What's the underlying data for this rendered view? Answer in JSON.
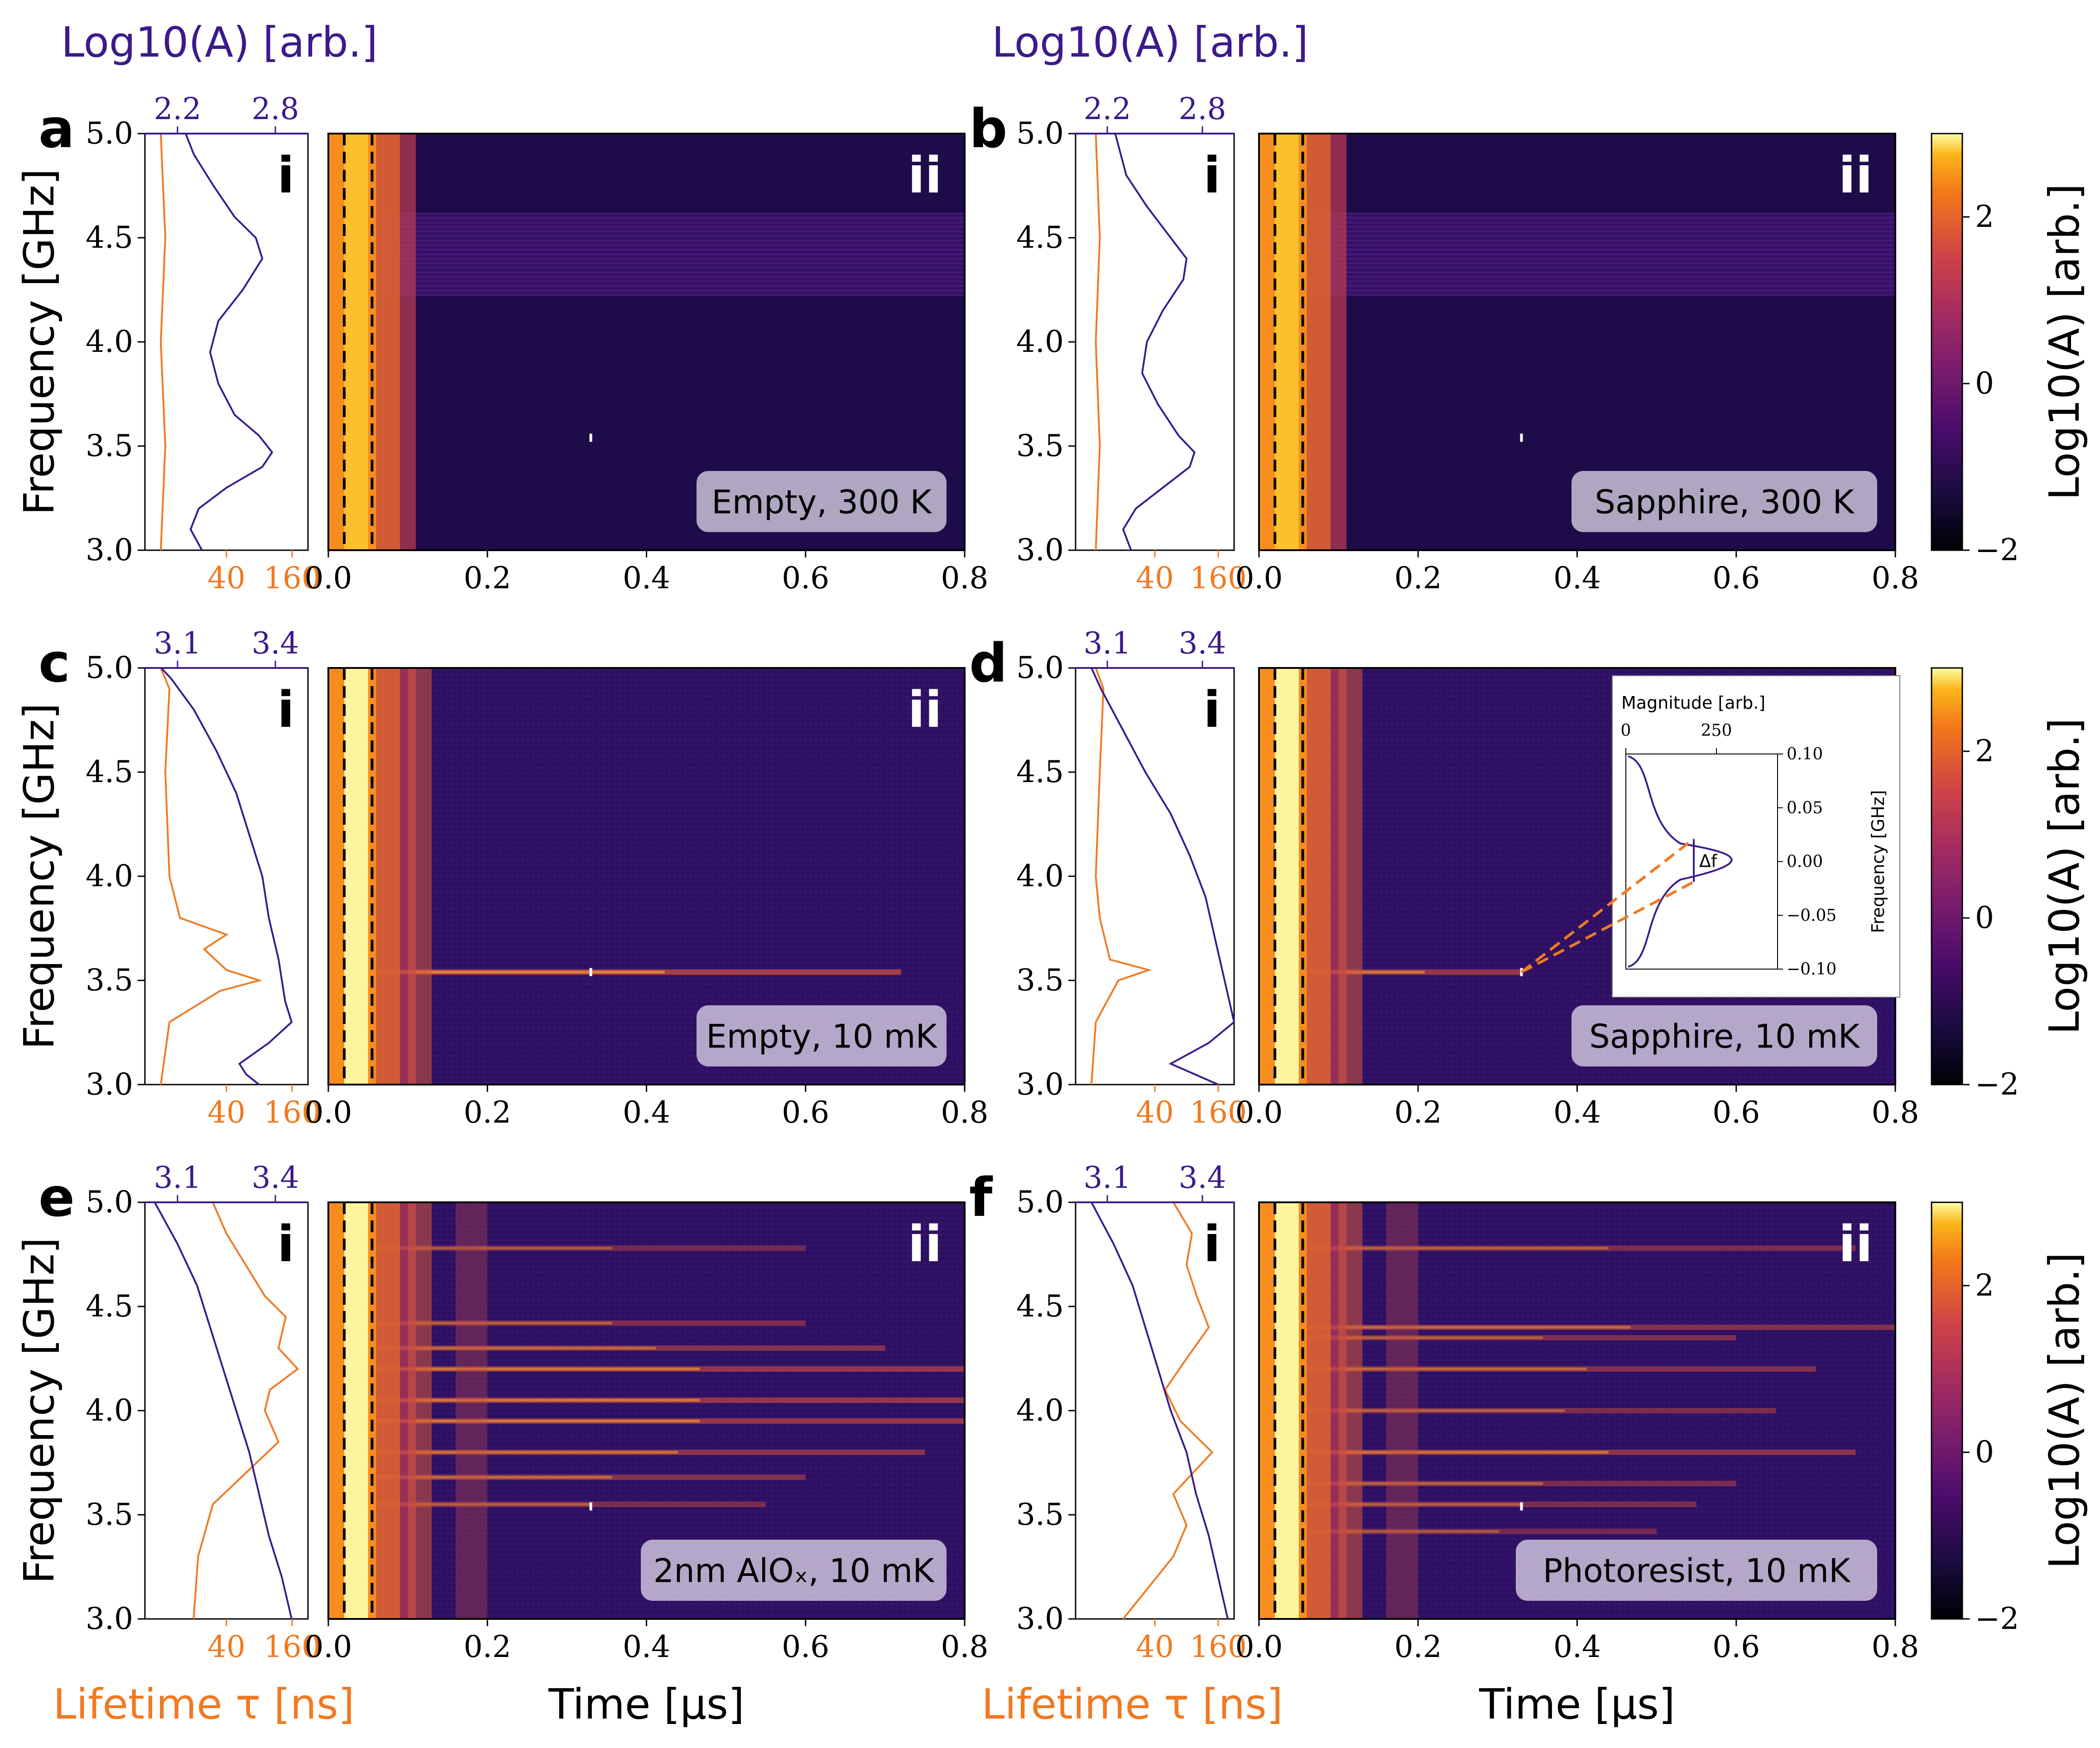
{
  "chart_data": {
    "type": "heatmap",
    "colorbar": {
      "label": "Log$_{10}$(A) [arb.]",
      "label_text": "Log10(A) [arb.]",
      "range": [
        -2,
        3
      ],
      "ticks": [
        "−2",
        "0",
        "2"
      ],
      "colormap": "inferno"
    },
    "shared": {
      "ylabel": "Frequency [GHz]",
      "xlabel": "Time [μs]",
      "ylim": [
        3.0,
        5.0
      ],
      "xlim": [
        0.0,
        0.8
      ],
      "yticks": [
        "3.0",
        "3.5",
        "4.0",
        "4.5",
        "5.0"
      ],
      "xticks": [
        "0.0",
        "0.2",
        "0.4",
        "0.6",
        "0.8"
      ],
      "lifetime_label": "Lifetime τ [ns]",
      "lifetime_ticks": [
        "40",
        "160"
      ],
      "amp_label": "Log10(A) [arb.]",
      "pulse_window_us": [
        0.02,
        0.055
      ],
      "marker_time_us": 0.33
    },
    "panels": [
      {
        "letter": "a",
        "i": "i",
        "ii": "ii",
        "condition": "Empty, 300 K",
        "amp_ticks": [
          "2.2",
          "2.8"
        ],
        "amp_range": [
          2.0,
          3.0
        ],
        "show_amp_label": true,
        "freq_profile": [
          [
            3.0,
            2.35
          ],
          [
            3.1,
            2.28
          ],
          [
            3.2,
            2.33
          ],
          [
            3.3,
            2.5
          ],
          [
            3.4,
            2.72
          ],
          [
            3.47,
            2.78
          ],
          [
            3.55,
            2.7
          ],
          [
            3.65,
            2.55
          ],
          [
            3.8,
            2.45
          ],
          [
            3.95,
            2.4
          ],
          [
            4.1,
            2.45
          ],
          [
            4.25,
            2.6
          ],
          [
            4.4,
            2.72
          ],
          [
            4.5,
            2.68
          ],
          [
            4.6,
            2.55
          ],
          [
            4.75,
            2.42
          ],
          [
            4.9,
            2.3
          ],
          [
            5.0,
            2.25
          ]
        ],
        "lifetime_profile": [
          [
            3.0,
            10
          ],
          [
            3.5,
            11
          ],
          [
            4.0,
            10
          ],
          [
            4.5,
            11
          ],
          [
            5.0,
            10
          ]
        ],
        "bands": [
          [
            4.22,
            4.62,
            0.35
          ]
        ],
        "hot_lines": []
      },
      {
        "letter": "b",
        "i": "i",
        "ii": "ii",
        "condition": "Sapphire, 300 K",
        "amp_ticks": [
          "2.2",
          "2.8"
        ],
        "amp_range": [
          2.0,
          3.0
        ],
        "show_amp_label": true,
        "freq_profile": [
          [
            3.0,
            2.35
          ],
          [
            3.1,
            2.3
          ],
          [
            3.2,
            2.38
          ],
          [
            3.3,
            2.55
          ],
          [
            3.4,
            2.72
          ],
          [
            3.47,
            2.75
          ],
          [
            3.55,
            2.65
          ],
          [
            3.7,
            2.52
          ],
          [
            3.85,
            2.42
          ],
          [
            4.0,
            2.45
          ],
          [
            4.15,
            2.55
          ],
          [
            4.3,
            2.68
          ],
          [
            4.4,
            2.7
          ],
          [
            4.5,
            2.6
          ],
          [
            4.65,
            2.45
          ],
          [
            4.8,
            2.32
          ],
          [
            5.0,
            2.25
          ]
        ],
        "lifetime_profile": [
          [
            3.0,
            11
          ],
          [
            3.5,
            12
          ],
          [
            4.0,
            11
          ],
          [
            4.5,
            12
          ],
          [
            5.0,
            11
          ]
        ],
        "bands": [
          [
            4.22,
            4.62,
            0.35
          ]
        ],
        "hot_lines": []
      },
      {
        "letter": "c",
        "i": "i",
        "ii": "ii",
        "condition": "Empty, 10 mK",
        "amp_ticks": [
          "3.1",
          "3.4"
        ],
        "amp_range": [
          3.0,
          3.5
        ],
        "show_amp_label": false,
        "freq_profile": [
          [
            3.0,
            3.35
          ],
          [
            3.05,
            3.31
          ],
          [
            3.1,
            3.29
          ],
          [
            3.2,
            3.38
          ],
          [
            3.3,
            3.45
          ],
          [
            3.4,
            3.43
          ],
          [
            3.6,
            3.41
          ],
          [
            3.8,
            3.38
          ],
          [
            4.0,
            3.36
          ],
          [
            4.2,
            3.32
          ],
          [
            4.4,
            3.28
          ],
          [
            4.6,
            3.22
          ],
          [
            4.8,
            3.15
          ],
          [
            4.95,
            3.08
          ],
          [
            5.0,
            3.05
          ]
        ],
        "lifetime_profile": [
          [
            3.0,
            10
          ],
          [
            3.3,
            12
          ],
          [
            3.45,
            35
          ],
          [
            3.5,
            80
          ],
          [
            3.55,
            40
          ],
          [
            3.65,
            25
          ],
          [
            3.72,
            40
          ],
          [
            3.8,
            15
          ],
          [
            4.0,
            12
          ],
          [
            4.5,
            11
          ],
          [
            4.9,
            12
          ],
          [
            5.0,
            10
          ]
        ],
        "bands": [],
        "hot_lines": [
          [
            3.54,
            0.72,
            0.7
          ]
        ]
      },
      {
        "letter": "d",
        "i": "i",
        "ii": "ii",
        "condition": "Sapphire, 10 mK",
        "amp_ticks": [
          "3.1",
          "3.4"
        ],
        "amp_range": [
          3.0,
          3.5
        ],
        "show_amp_label": false,
        "freq_profile": [
          [
            3.0,
            3.45
          ],
          [
            3.1,
            3.3
          ],
          [
            3.2,
            3.42
          ],
          [
            3.3,
            3.5
          ],
          [
            3.5,
            3.47
          ],
          [
            3.7,
            3.44
          ],
          [
            3.9,
            3.41
          ],
          [
            4.1,
            3.36
          ],
          [
            4.3,
            3.3
          ],
          [
            4.5,
            3.22
          ],
          [
            4.7,
            3.15
          ],
          [
            4.9,
            3.08
          ],
          [
            5.0,
            3.05
          ]
        ],
        "lifetime_profile": [
          [
            3.0,
            10
          ],
          [
            3.3,
            11
          ],
          [
            3.5,
            18
          ],
          [
            3.55,
            35
          ],
          [
            3.6,
            15
          ],
          [
            3.8,
            12
          ],
          [
            4.0,
            11
          ],
          [
            4.5,
            12
          ],
          [
            4.9,
            13
          ],
          [
            5.0,
            11
          ]
        ],
        "bands": [],
        "hot_lines": [
          [
            3.54,
            0.33,
            0.6
          ]
        ],
        "inset": {
          "title": "Magnitude [arb.]",
          "xticks": [
            "0",
            "250"
          ],
          "ylabel": "Frequency [GHz]",
          "yticks": [
            "0.10",
            "0.05",
            "0.00",
            "−0.05",
            "−0.10"
          ],
          "annotation": "Δf"
        }
      },
      {
        "letter": "e",
        "i": "i",
        "ii": "ii",
        "condition": "2nm AlOₓ, 10 mK",
        "amp_ticks": [
          "3.1",
          "3.4"
        ],
        "amp_range": [
          3.0,
          3.5
        ],
        "show_amp_label": false,
        "freq_profile": [
          [
            3.0,
            3.45
          ],
          [
            3.2,
            3.42
          ],
          [
            3.4,
            3.38
          ],
          [
            3.6,
            3.35
          ],
          [
            3.8,
            3.32
          ],
          [
            4.0,
            3.28
          ],
          [
            4.2,
            3.24
          ],
          [
            4.4,
            3.2
          ],
          [
            4.6,
            3.16
          ],
          [
            4.8,
            3.1
          ],
          [
            5.0,
            3.03
          ]
        ],
        "lifetime_profile": [
          [
            3.0,
            20
          ],
          [
            3.3,
            22
          ],
          [
            3.55,
            30
          ],
          [
            3.7,
            60
          ],
          [
            3.85,
            120
          ],
          [
            4.0,
            90
          ],
          [
            4.1,
            100
          ],
          [
            4.2,
            180
          ],
          [
            4.3,
            120
          ],
          [
            4.45,
            140
          ],
          [
            4.55,
            90
          ],
          [
            4.7,
            60
          ],
          [
            4.85,
            40
          ],
          [
            5.0,
            30
          ]
        ],
        "bands": [],
        "hot_lines": [
          [
            3.55,
            0.55,
            0.45
          ],
          [
            3.68,
            0.6,
            0.5
          ],
          [
            3.8,
            0.75,
            0.55
          ],
          [
            3.95,
            0.8,
            0.6
          ],
          [
            4.05,
            0.8,
            0.6
          ],
          [
            4.2,
            0.8,
            0.6
          ],
          [
            4.3,
            0.7,
            0.5
          ],
          [
            4.42,
            0.6,
            0.45
          ],
          [
            4.78,
            0.6,
            0.4
          ]
        ]
      },
      {
        "letter": "f",
        "i": "i",
        "ii": "ii",
        "condition": "Photoresist, 10 mK",
        "amp_ticks": [
          "3.1",
          "3.4"
        ],
        "amp_range": [
          3.0,
          3.5
        ],
        "show_amp_label": false,
        "freq_profile": [
          [
            3.0,
            3.48
          ],
          [
            3.2,
            3.45
          ],
          [
            3.4,
            3.42
          ],
          [
            3.6,
            3.38
          ],
          [
            3.8,
            3.35
          ],
          [
            4.0,
            3.3
          ],
          [
            4.2,
            3.26
          ],
          [
            4.4,
            3.22
          ],
          [
            4.6,
            3.18
          ],
          [
            4.8,
            3.12
          ],
          [
            5.0,
            3.05
          ]
        ],
        "lifetime_profile": [
          [
            3.0,
            20
          ],
          [
            3.3,
            60
          ],
          [
            3.45,
            80
          ],
          [
            3.6,
            60
          ],
          [
            3.8,
            140
          ],
          [
            3.95,
            70
          ],
          [
            4.1,
            50
          ],
          [
            4.25,
            80
          ],
          [
            4.4,
            130
          ],
          [
            4.55,
            100
          ],
          [
            4.7,
            80
          ],
          [
            4.85,
            90
          ],
          [
            5.0,
            60
          ]
        ],
        "bands": [],
        "hot_lines": [
          [
            3.42,
            0.5,
            0.4
          ],
          [
            3.55,
            0.55,
            0.45
          ],
          [
            3.65,
            0.6,
            0.45
          ],
          [
            3.8,
            0.75,
            0.55
          ],
          [
            4.0,
            0.65,
            0.45
          ],
          [
            4.2,
            0.7,
            0.5
          ],
          [
            4.35,
            0.6,
            0.45
          ],
          [
            4.4,
            0.8,
            0.5
          ],
          [
            4.78,
            0.75,
            0.45
          ]
        ]
      }
    ]
  }
}
